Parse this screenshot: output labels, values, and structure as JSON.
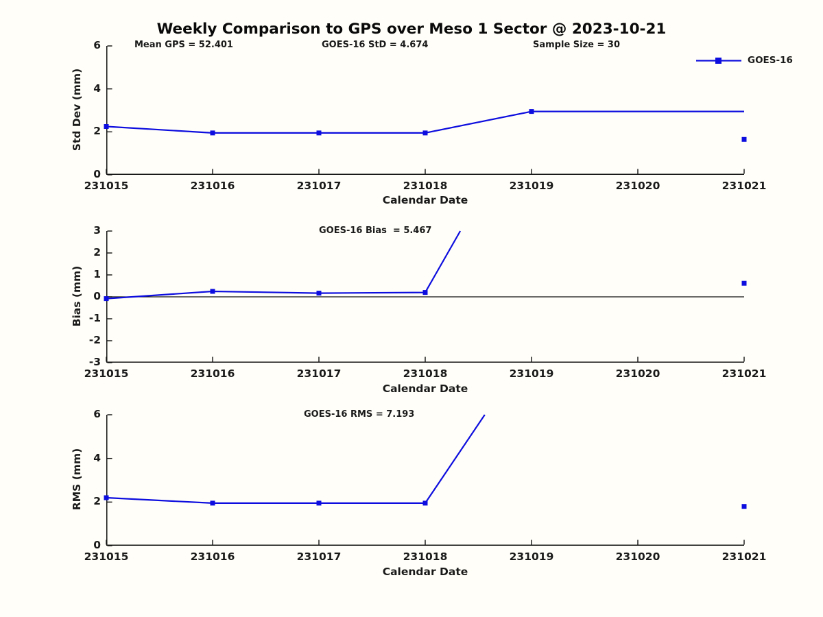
{
  "title": "Weekly Comparison to GPS over Meso 1 Sector @ 2023-10-21",
  "legend": {
    "label": "GOES-16",
    "position": "top-right",
    "border": false
  },
  "colors": {
    "series_blue": "#0d0ddf",
    "axis": "#111111",
    "text": "#1a1a1a",
    "background": "#fffef8"
  },
  "stats": {
    "mean_gps": 52.401,
    "goes16_std": 4.674,
    "sample_size": 30,
    "goes16_bias": 5.467,
    "goes16_rms": 7.193
  },
  "chart_data": [
    {
      "type": "line",
      "name": "std_dev_panel",
      "ylabel": "Std Dev (mm)",
      "xlabel": "Calendar Date",
      "x_tick_labels": [
        "231015",
        "231016",
        "231017",
        "231018",
        "231019",
        "231020",
        "231021"
      ],
      "xlim": [
        231015,
        231021
      ],
      "ylim": [
        0,
        6
      ],
      "y_ticks": [
        0,
        2,
        4,
        6
      ],
      "grid": false,
      "tick_direction": "in",
      "annotations": [
        {
          "text": "Mean GPS = 52.401",
          "slot": "top-left"
        },
        {
          "text": "GOES-16 StD = 4.674",
          "slot": "top-center"
        },
        {
          "text": "Sample Size = 30",
          "slot": "top-right"
        }
      ],
      "series": [
        {
          "name": "GOES-16",
          "marker": "square",
          "line_x": [
            231015,
            231016,
            231017,
            231018,
            231019,
            231021
          ],
          "line_y": [
            2.25,
            1.95,
            1.95,
            1.95,
            2.95,
            2.95
          ],
          "marker_x": [
            231015,
            231016,
            231017,
            231018,
            231019
          ],
          "marker_y": [
            2.25,
            1.95,
            1.95,
            1.95,
            2.95
          ]
        },
        {
          "name": "GOES-16 detached point",
          "marker": "square",
          "marker_x": [
            231021
          ],
          "marker_y": [
            1.65
          ]
        }
      ]
    },
    {
      "type": "line",
      "name": "bias_panel",
      "ylabel": "Bias (mm)",
      "xlabel": "Calendar Date",
      "x_tick_labels": [
        "231015",
        "231016",
        "231017",
        "231018",
        "231019",
        "231020",
        "231021"
      ],
      "xlim": [
        231015,
        231021
      ],
      "ylim": [
        -3,
        3
      ],
      "y_ticks": [
        3,
        2,
        1,
        0,
        -1,
        -2,
        -3
      ],
      "grid": false,
      "zero_line": true,
      "tick_direction": "in",
      "annotations": [
        {
          "text": "GOES-16 Bias  = 5.467",
          "slot": "top-center"
        }
      ],
      "series": [
        {
          "name": "GOES-16",
          "marker": "square",
          "line_x": [
            231015,
            231016,
            231017,
            231018,
            231018.33
          ],
          "line_y": [
            -0.08,
            0.25,
            0.17,
            0.2,
            3.0
          ],
          "marker_x": [
            231015,
            231016,
            231017,
            231018
          ],
          "marker_y": [
            -0.08,
            0.25,
            0.17,
            0.2
          ],
          "note": "line rises off-scale and is clipped at y=3"
        },
        {
          "name": "GOES-16 detached point",
          "marker": "square",
          "marker_x": [
            231021
          ],
          "marker_y": [
            0.62
          ]
        }
      ]
    },
    {
      "type": "line",
      "name": "rms_panel",
      "ylabel": "RMS (mm)",
      "xlabel": "Calendar Date",
      "x_tick_labels": [
        "231015",
        "231016",
        "231017",
        "231018",
        "231019",
        "231020",
        "231021"
      ],
      "xlim": [
        231015,
        231021
      ],
      "ylim": [
        0,
        6
      ],
      "y_ticks": [
        0,
        2,
        4,
        6
      ],
      "grid": false,
      "tick_direction": "in",
      "annotations": [
        {
          "text": "GOES-16 RMS = 7.193",
          "slot": "top-center"
        }
      ],
      "series": [
        {
          "name": "GOES-16",
          "marker": "square",
          "line_x": [
            231015,
            231016,
            231017,
            231018,
            231018.56
          ],
          "line_y": [
            2.2,
            1.95,
            1.95,
            1.95,
            6.0
          ],
          "marker_x": [
            231015,
            231016,
            231017,
            231018
          ],
          "marker_y": [
            2.2,
            1.95,
            1.95,
            1.95
          ],
          "note": "line rises off-scale and is clipped at y=6"
        },
        {
          "name": "GOES-16 detached point",
          "marker": "square",
          "marker_x": [
            231021
          ],
          "marker_y": [
            1.8
          ]
        }
      ]
    }
  ]
}
